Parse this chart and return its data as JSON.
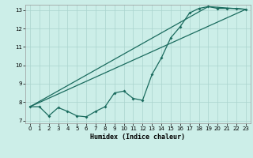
{
  "xlabel": "Humidex (Indice chaleur)",
  "background_color": "#cceee8",
  "grid_color": "#aad4ce",
  "line_color": "#1a6b5e",
  "xlim": [
    -0.5,
    23.5
  ],
  "ylim": [
    6.85,
    13.3
  ],
  "yticks": [
    7,
    8,
    9,
    10,
    11,
    12,
    13
  ],
  "xticks": [
    0,
    1,
    2,
    3,
    4,
    5,
    6,
    7,
    8,
    9,
    10,
    11,
    12,
    13,
    14,
    15,
    16,
    17,
    18,
    19,
    20,
    21,
    22,
    23
  ],
  "line1_x": [
    0,
    1,
    2,
    3,
    4,
    5,
    6,
    7,
    8,
    9,
    10,
    11,
    12,
    13,
    14,
    15,
    16,
    17,
    18,
    19,
    20,
    21,
    22,
    23
  ],
  "line1_y": [
    7.75,
    7.75,
    7.25,
    7.7,
    7.5,
    7.25,
    7.2,
    7.5,
    7.75,
    8.5,
    8.6,
    8.2,
    8.1,
    9.5,
    10.4,
    11.5,
    12.1,
    12.85,
    13.1,
    13.2,
    13.1,
    13.1,
    13.1,
    13.05
  ],
  "line2_x": [
    0,
    19,
    23
  ],
  "line2_y": [
    7.75,
    13.2,
    13.05
  ],
  "line3_x": [
    0,
    23
  ],
  "line3_y": [
    7.75,
    13.05
  ]
}
